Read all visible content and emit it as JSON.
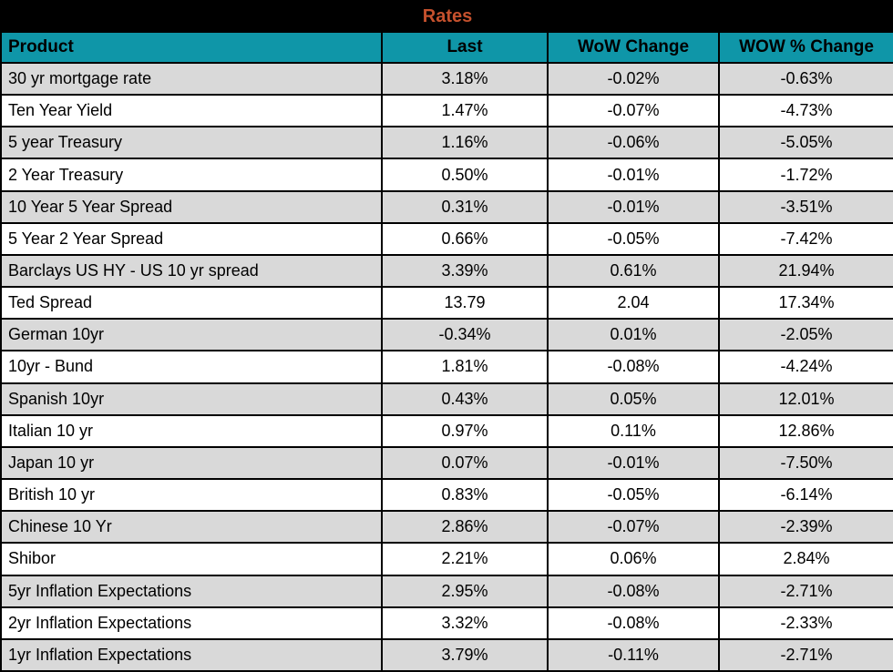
{
  "colors": {
    "title_bg": "#000000",
    "title_text": "#C5512D",
    "header_bg": "#0F96A8",
    "header_text": "#000000",
    "row_alt_bg": "#D9D9D9",
    "row_bg": "#FFFFFF",
    "grid": "#000000"
  },
  "chart_data": {
    "type": "table",
    "title": "Rates",
    "columns": [
      "Product",
      "Last",
      "WoW Change",
      "WOW % Change"
    ],
    "rows": [
      {
        "product": "30 yr mortgage rate",
        "last": "3.18%",
        "wow_change": "-0.02%",
        "wow_pct_change": "-0.63%"
      },
      {
        "product": "Ten Year Yield",
        "last": "1.47%",
        "wow_change": "-0.07%",
        "wow_pct_change": "-4.73%"
      },
      {
        "product": "5 year Treasury",
        "last": "1.16%",
        "wow_change": "-0.06%",
        "wow_pct_change": "-5.05%"
      },
      {
        "product": "2 Year Treasury",
        "last": "0.50%",
        "wow_change": "-0.01%",
        "wow_pct_change": "-1.72%"
      },
      {
        "product": "10 Year 5 Year Spread",
        "last": "0.31%",
        "wow_change": "-0.01%",
        "wow_pct_change": "-3.51%"
      },
      {
        "product": "5 Year 2 Year Spread",
        "last": "0.66%",
        "wow_change": "-0.05%",
        "wow_pct_change": "-7.42%"
      },
      {
        "product": "Barclays US HY - US 10 yr spread",
        "last": "3.39%",
        "wow_change": "0.61%",
        "wow_pct_change": "21.94%"
      },
      {
        "product": "Ted Spread",
        "last": "13.79",
        "wow_change": "2.04",
        "wow_pct_change": "17.34%"
      },
      {
        "product": "German 10yr",
        "last": "-0.34%",
        "wow_change": "0.01%",
        "wow_pct_change": "-2.05%"
      },
      {
        "product": "10yr - Bund",
        "last": "1.81%",
        "wow_change": "-0.08%",
        "wow_pct_change": "-4.24%"
      },
      {
        "product": "Spanish 10yr",
        "last": "0.43%",
        "wow_change": "0.05%",
        "wow_pct_change": "12.01%"
      },
      {
        "product": "Italian 10 yr",
        "last": "0.97%",
        "wow_change": "0.11%",
        "wow_pct_change": "12.86%"
      },
      {
        "product": "Japan 10 yr",
        "last": "0.07%",
        "wow_change": "-0.01%",
        "wow_pct_change": "-7.50%"
      },
      {
        "product": "British 10 yr",
        "last": "0.83%",
        "wow_change": "-0.05%",
        "wow_pct_change": "-6.14%"
      },
      {
        "product": "Chinese 10 Yr",
        "last": "2.86%",
        "wow_change": "-0.07%",
        "wow_pct_change": "-2.39%"
      },
      {
        "product": "Shibor",
        "last": "2.21%",
        "wow_change": "0.06%",
        "wow_pct_change": "2.84%"
      },
      {
        "product": "5yr Inflation Expectations",
        "last": "2.95%",
        "wow_change": "-0.08%",
        "wow_pct_change": "-2.71%"
      },
      {
        "product": "2yr Inflation Expectations",
        "last": "3.32%",
        "wow_change": "-0.08%",
        "wow_pct_change": "-2.33%"
      },
      {
        "product": "1yr Inflation Expectations",
        "last": "3.79%",
        "wow_change": "-0.11%",
        "wow_pct_change": "-2.71%"
      }
    ]
  }
}
